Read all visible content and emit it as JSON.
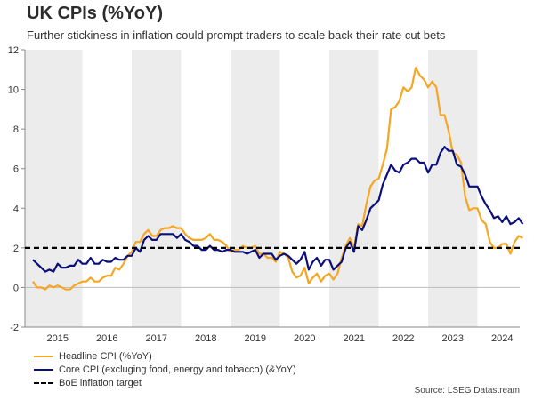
{
  "title": "UK CPIs (%YoY)",
  "subtitle": "Further stickiness in inflation could prompt traders to scale back their rate cut bets",
  "source": "Source: LSEG Datastream",
  "legend": [
    {
      "label": "Headline CPI (%YoY)"
    },
    {
      "label": "Core CPI (excluging food, energy and tobacco) (&YoY)"
    },
    {
      "label": "BoE inflation target"
    }
  ],
  "colors": {
    "headline": "#f5a623",
    "core": "#0b0f7a",
    "target": "#000000",
    "band": "#ececec"
  },
  "chart_data": {
    "type": "line",
    "title": "UK CPIs (%YoY)",
    "xlabel": "",
    "ylabel": "",
    "x_start": "2015-01",
    "years": [
      "2015",
      "2016",
      "2017",
      "2018",
      "2019",
      "2020",
      "2021",
      "2022",
      "2023",
      "2024"
    ],
    "yticks": [
      "-2",
      "0",
      "2",
      "4",
      "6",
      "8",
      "10",
      "12"
    ],
    "ylim": [
      -2,
      12
    ],
    "grid": false,
    "target": 2.0,
    "series": [
      {
        "name": "Headline CPI (%YoY)",
        "values": [
          0.3,
          0.0,
          0.0,
          -0.1,
          0.1,
          0.0,
          0.1,
          0.0,
          -0.1,
          -0.1,
          0.1,
          0.2,
          0.3,
          0.3,
          0.5,
          0.3,
          0.3,
          0.5,
          0.6,
          0.6,
          1.0,
          0.9,
          1.2,
          1.6,
          1.8,
          2.3,
          2.3,
          2.7,
          2.9,
          2.6,
          2.6,
          2.9,
          3.0,
          3.0,
          3.1,
          3.0,
          3.0,
          2.7,
          2.5,
          2.4,
          2.4,
          2.4,
          2.5,
          2.7,
          2.4,
          2.4,
          2.3,
          2.1,
          1.8,
          1.9,
          1.9,
          2.1,
          2.0,
          2.0,
          2.1,
          1.7,
          1.7,
          1.5,
          1.5,
          1.3,
          1.8,
          1.7,
          1.5,
          0.8,
          0.5,
          0.6,
          1.0,
          0.2,
          0.5,
          0.7,
          0.3,
          0.6,
          0.7,
          0.4,
          0.7,
          1.5,
          2.1,
          2.5,
          2.0,
          3.2,
          3.1,
          4.2,
          5.1,
          5.4,
          5.5,
          6.2,
          7.0,
          9.0,
          9.1,
          9.4,
          10.1,
          9.9,
          10.1,
          11.1,
          10.7,
          10.5,
          10.1,
          10.4,
          10.1,
          8.7,
          8.7,
          7.9,
          6.8,
          6.7,
          6.3,
          4.6,
          3.9,
          4.0,
          4.0,
          3.4,
          3.2,
          2.3,
          2.0,
          2.0,
          2.2,
          2.2,
          1.7,
          2.3,
          2.6,
          2.5
        ]
      },
      {
        "name": "Core CPI (excluging food, energy and tobacco) (&YoY)",
        "values": [
          1.4,
          1.2,
          1.0,
          0.8,
          0.9,
          0.8,
          1.2,
          1.0,
          1.0,
          1.1,
          1.1,
          1.4,
          1.2,
          1.2,
          1.5,
          1.2,
          1.2,
          1.4,
          1.3,
          1.3,
          1.5,
          1.4,
          1.4,
          1.6,
          1.6,
          2.0,
          1.8,
          2.4,
          2.6,
          2.4,
          2.4,
          2.7,
          2.7,
          2.7,
          2.7,
          2.5,
          2.7,
          2.4,
          2.3,
          2.1,
          2.1,
          1.9,
          1.9,
          2.1,
          1.9,
          1.9,
          1.8,
          1.9,
          1.9,
          1.8,
          1.8,
          1.8,
          1.7,
          1.8,
          1.9,
          1.5,
          1.7,
          1.7,
          1.7,
          1.4,
          1.6,
          1.7,
          1.6,
          1.4,
          1.2,
          1.4,
          1.8,
          0.9,
          1.3,
          1.5,
          1.1,
          1.4,
          1.4,
          0.9,
          1.1,
          1.3,
          2.0,
          2.3,
          1.8,
          3.1,
          2.9,
          3.4,
          4.0,
          4.2,
          4.4,
          5.2,
          5.7,
          6.2,
          5.9,
          5.8,
          6.2,
          6.3,
          6.5,
          6.5,
          6.3,
          6.3,
          5.8,
          6.2,
          6.2,
          6.8,
          7.1,
          6.9,
          6.9,
          6.2,
          6.1,
          5.7,
          5.1,
          5.1,
          5.1,
          4.6,
          4.2,
          3.9,
          3.5,
          3.6,
          3.3,
          3.6,
          3.2,
          3.3,
          3.5,
          3.2
        ]
      }
    ]
  }
}
